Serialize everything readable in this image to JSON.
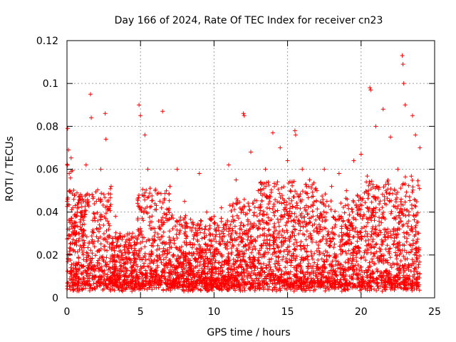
{
  "chart_data": {
    "type": "scatter",
    "title": "Day 166 of 2024, Rate Of TEC Index for receiver cn23",
    "xlabel": "GPS time / hours",
    "ylabel": "ROTI / TECUs",
    "xlim": [
      0,
      25
    ],
    "ylim": [
      0,
      0.12
    ],
    "x_ticks": [
      0,
      5,
      10,
      15,
      20,
      25
    ],
    "x_tick_labels": [
      "0",
      "5",
      "10",
      "15",
      "20",
      "25"
    ],
    "y_ticks": [
      0,
      0.02,
      0.04,
      0.06,
      0.08,
      0.1,
      0.12
    ],
    "y_tick_labels": [
      "0",
      "0.02",
      "0.04",
      "0.06",
      "0.08",
      "0.1",
      "0.12"
    ],
    "grid": true,
    "marker": "+",
    "color": "#ff0000",
    "series": [
      {
        "name": "ROTI",
        "x": [
          0.05,
          0.1,
          0.15,
          0.2,
          0.3,
          0.5,
          0.8,
          1.0,
          1.3,
          1.6,
          1.65,
          2.0,
          2.3,
          2.6,
          2.65,
          3.0,
          3.3,
          3.6,
          4.0,
          4.5,
          4.9,
          5.0,
          5.3,
          5.5,
          6.0,
          6.5,
          7.0,
          7.5,
          8.0,
          8.5,
          9.0,
          9.5,
          10.0,
          10.5,
          11.0,
          11.5,
          12.0,
          12.05,
          12.5,
          13.0,
          13.5,
          14.0,
          14.5,
          15.0,
          15.5,
          15.55,
          16.0,
          16.5,
          17.0,
          17.5,
          18.0,
          18.5,
          19.0,
          19.5,
          20.0,
          20.5,
          20.6,
          20.65,
          21.0,
          21.5,
          22.0,
          22.5,
          22.8,
          22.85,
          22.9,
          23.0,
          23.5,
          23.7,
          24.0
        ],
        "y": [
          0.079,
          0.069,
          0.058,
          0.05,
          0.036,
          0.025,
          0.03,
          0.04,
          0.062,
          0.095,
          0.084,
          0.045,
          0.06,
          0.086,
          0.074,
          0.052,
          0.038,
          0.03,
          0.026,
          0.028,
          0.09,
          0.085,
          0.076,
          0.06,
          0.05,
          0.087,
          0.052,
          0.06,
          0.045,
          0.035,
          0.058,
          0.04,
          0.038,
          0.042,
          0.062,
          0.055,
          0.086,
          0.085,
          0.068,
          0.05,
          0.06,
          0.077,
          0.07,
          0.064,
          0.078,
          0.076,
          0.06,
          0.055,
          0.05,
          0.06,
          0.052,
          0.058,
          0.05,
          0.064,
          0.067,
          0.05,
          0.098,
          0.097,
          0.08,
          0.088,
          0.075,
          0.06,
          0.113,
          0.109,
          0.1,
          0.09,
          0.085,
          0.076,
          0.07
        ]
      }
    ]
  }
}
